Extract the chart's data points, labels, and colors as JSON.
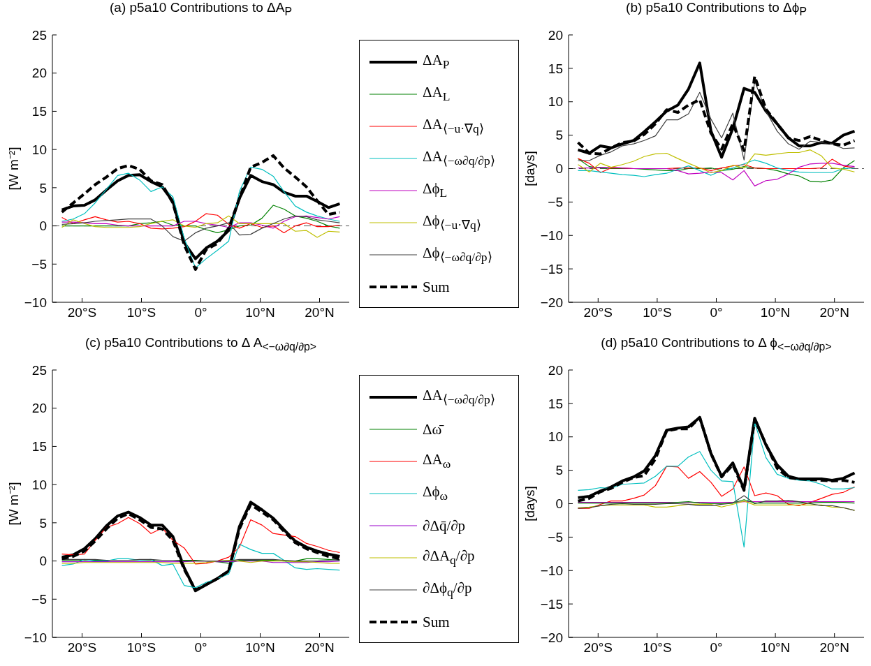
{
  "chart_data": [
    {
      "type": "line",
      "title": "(a) p5a10 Contributions to ΔA$_{P}$",
      "ylabel": "[W m⁻²]",
      "legend": "right",
      "x": [
        -23.4,
        -21.5,
        -19.6,
        -17.8,
        -15.9,
        -14.0,
        -12.2,
        -10.3,
        -8.4,
        -6.5,
        -4.7,
        -2.8,
        -0.9,
        0.9,
        2.8,
        4.7,
        6.5,
        8.4,
        10.3,
        12.2,
        14.0,
        15.9,
        17.8,
        19.6,
        21.5,
        23.4
      ],
      "xlim": [
        -25,
        25
      ],
      "xticks": [
        {
          "value": -20,
          "label": "20°S"
        },
        {
          "value": -10,
          "label": "10°S"
        },
        {
          "value": 0,
          "label": "0°"
        },
        {
          "value": 10,
          "label": "10°N"
        },
        {
          "value": 20,
          "label": "20°N"
        }
      ],
      "ylim": [
        -10,
        25
      ],
      "yticks": [
        -10,
        -5,
        0,
        5,
        10,
        15,
        20,
        25
      ],
      "ref_lines": [
        {
          "axis": "y",
          "value": 0,
          "color": "#555555",
          "line_style": "dashed"
        }
      ],
      "series": [
        {
          "name": "ΔA$_{P}$",
          "color": "#000000",
          "line_style": "solid",
          "values": [
            2.1,
            2.6,
            2.7,
            3.4,
            4.7,
            5.9,
            6.6,
            6.7,
            5.8,
            5.1,
            3.2,
            -2.2,
            -4.3,
            -2.9,
            -2.0,
            -0.6,
            3.6,
            6.6,
            5.8,
            5.4,
            4.4,
            3.9,
            3.9,
            3.2,
            2.4,
            2.9
          ]
        },
        {
          "name": "ΔA$_{L}$",
          "color": "#008000",
          "line_style": "solid",
          "values": [
            0,
            0,
            0,
            0,
            0,
            0,
            0,
            0.3,
            0.4,
            0.6,
            0.1,
            0,
            0,
            -0.5,
            -0.9,
            -0.5,
            0,
            0.1,
            1.0,
            2.7,
            2.2,
            1.3,
            1.0,
            0.6,
            0,
            -0.3
          ]
        },
        {
          "name": "ΔA$_{⟨−u·∇q⟩}$",
          "color": "#ff0000",
          "line_style": "solid",
          "values": [
            1.1,
            0.3,
            0.8,
            1.2,
            0.8,
            0.5,
            0.6,
            0.3,
            -0.3,
            -0.4,
            -0.3,
            -0.1,
            0.6,
            1.6,
            1.4,
            0.2,
            -0.3,
            0.3,
            -0.2,
            0,
            -0.9,
            0,
            0.4,
            -0.1,
            -0.1,
            0.1
          ]
        },
        {
          "name": "ΔA$_{⟨−ω∂q/∂p⟩}$",
          "color": "#00bfbf",
          "line_style": "solid",
          "values": [
            0.6,
            0.9,
            1.6,
            3.0,
            4.8,
            6.6,
            6.9,
            6.0,
            4.5,
            5.1,
            3.8,
            -1.6,
            -5.5,
            -4.3,
            -3.2,
            -2.0,
            4.5,
            7.7,
            7.4,
            6.5,
            4.5,
            2.6,
            1.8,
            1.3,
            0.9,
            0.6
          ]
        },
        {
          "name": "Δϕ$_{L}$",
          "color": "#bf00bf",
          "line_style": "solid",
          "values": [
            0.5,
            0.5,
            0.4,
            0.3,
            0.3,
            0.1,
            0,
            0,
            0,
            0,
            0,
            0.6,
            0.6,
            0.3,
            0.1,
            -0.2,
            0.4,
            0.4,
            0.1,
            -0.3,
            0.6,
            1.2,
            1.3,
            1.1,
            0.9,
            1.2
          ]
        },
        {
          "name": "Δϕ$_{⟨−u·∇q⟩}$",
          "color": "#bfbf00",
          "line_style": "solid",
          "values": [
            -0.2,
            0.8,
            0.3,
            -0.1,
            -0.2,
            -0.2,
            -0.2,
            -0.1,
            0.3,
            0.6,
            0.8,
            0,
            -0.2,
            0.3,
            0.4,
            1.3,
            0.3,
            0.3,
            0.3,
            0.3,
            0.3,
            -0.7,
            -0.6,
            -1.5,
            -0.7,
            -0.8
          ]
        },
        {
          "name": "Δϕ$_{⟨−ω∂q/∂p⟩}$",
          "color": "#404040",
          "line_style": "solid",
          "values": [
            0.2,
            0.3,
            0.4,
            0.6,
            0.7,
            0.8,
            0.9,
            0.9,
            0.9,
            0,
            -1.4,
            -2.0,
            -0.9,
            -0.3,
            0,
            0.4,
            -1.2,
            -1.1,
            -0.3,
            0.3,
            0.9,
            1.3,
            1.2,
            0.8,
            0.6,
            0.4
          ]
        },
        {
          "name": "Sum",
          "color": "#000000",
          "line_style": "dashed",
          "values": [
            1.8,
            3.0,
            4.2,
            5.4,
            6.4,
            7.5,
            7.9,
            7.4,
            5.9,
            5.4,
            3.0,
            -2.5,
            -5.7,
            -3.1,
            -2.3,
            -0.3,
            3.6,
            7.7,
            8.3,
            9.2,
            7.6,
            6.4,
            5.1,
            3.3,
            1.5,
            1.8
          ]
        }
      ]
    },
    {
      "type": "line",
      "title": "(b) p5a10 Contributions to Δϕ$_{P}$",
      "ylabel": "[days]",
      "x": [
        -23.4,
        -21.5,
        -19.6,
        -17.8,
        -15.9,
        -14.0,
        -12.2,
        -10.3,
        -8.4,
        -6.5,
        -4.7,
        -2.8,
        -0.9,
        0.9,
        2.8,
        4.7,
        6.5,
        8.4,
        10.3,
        12.2,
        14.0,
        15.9,
        17.8,
        19.6,
        21.5,
        23.4
      ],
      "xlim": [
        -25,
        25
      ],
      "xticks": [
        {
          "value": -20,
          "label": "20°S"
        },
        {
          "value": -10,
          "label": "10°S"
        },
        {
          "value": 0,
          "label": "0°"
        },
        {
          "value": 10,
          "label": "10°N"
        },
        {
          "value": 20,
          "label": "20°N"
        }
      ],
      "ylim": [
        -20,
        20
      ],
      "yticks": [
        -20,
        -15,
        -10,
        -5,
        0,
        5,
        10,
        15,
        20
      ],
      "ref_lines": [
        {
          "axis": "y",
          "value": 0,
          "color": "#555555",
          "line_style": "dashed"
        }
      ],
      "series": [
        {
          "color": "#000000",
          "line_style": "solid",
          "values": [
            2.8,
            2.3,
            3.4,
            3.1,
            3.7,
            4.2,
            5.5,
            7.0,
            8.6,
            9.5,
            11.9,
            15.8,
            5.6,
            1.7,
            6.0,
            12.0,
            11.4,
            8.6,
            6.7,
            4.6,
            3.4,
            3.4,
            3.9,
            3.8,
            5.0,
            5.6
          ]
        },
        {
          "color": "#008000",
          "line_style": "solid",
          "values": [
            1.5,
            0.3,
            0.1,
            0,
            0,
            0,
            -0.1,
            -0.2,
            -0.3,
            -0.3,
            0,
            0,
            0.1,
            -0.3,
            -0.1,
            0.3,
            0.1,
            0,
            -0.3,
            -0.8,
            -1.1,
            -1.9,
            -2.0,
            -1.7,
            0.1,
            1.2
          ]
        },
        {
          "color": "#ff0000",
          "line_style": "solid",
          "values": [
            1.5,
            0.8,
            -0.6,
            0.1,
            0.1,
            0,
            0,
            0,
            0,
            0.1,
            0.1,
            0.1,
            -0.3,
            0.1,
            0.4,
            0.6,
            0.1,
            0,
            0,
            0,
            0,
            0,
            0.1,
            1.4,
            0.4,
            0.1
          ]
        },
        {
          "color": "#00bfbf",
          "line_style": "solid",
          "values": [
            -0.3,
            -0.3,
            -0.5,
            -0.7,
            -0.9,
            -1.0,
            -1.2,
            -0.9,
            -0.7,
            -0.1,
            0.4,
            -0.3,
            -1.0,
            -0.3,
            0.1,
            0.7,
            1.3,
            0.8,
            0.1,
            -0.3,
            -0.5,
            -0.6,
            -0.6,
            -0.6,
            0,
            0.1
          ]
        },
        {
          "color": "#bf00bf",
          "line_style": "solid",
          "values": [
            0.1,
            0.1,
            0.2,
            0.2,
            0.1,
            0,
            0,
            0,
            0,
            -0.3,
            -0.8,
            -0.7,
            -0.5,
            -0.6,
            -1.7,
            -0.3,
            -2.6,
            -1.8,
            -1.6,
            -0.8,
            0.2,
            0.7,
            0.8,
            0.8,
            0.5,
            0.3
          ]
        },
        {
          "color": "#bfbf00",
          "line_style": "solid",
          "values": [
            0.6,
            -0.5,
            0.8,
            0.2,
            0.6,
            1.1,
            1.8,
            2.2,
            2.3,
            1.5,
            0.8,
            0.1,
            -0.6,
            -0.3,
            0.5,
            0.1,
            2.2,
            2.0,
            2.2,
            2.4,
            2.4,
            2.8,
            1.9,
            0.1,
            -0.1,
            -0.5
          ]
        },
        {
          "color": "#404040",
          "line_style": "solid",
          "values": [
            1.2,
            1.2,
            2.0,
            2.5,
            3.4,
            3.7,
            4.2,
            4.9,
            7.3,
            7.3,
            8.2,
            11.4,
            7.4,
            4.6,
            8.3,
            1.3,
            13.1,
            8.6,
            5.6,
            3.7,
            2.9,
            4.1,
            3.9,
            3.7,
            3.0,
            3.1
          ]
        },
        {
          "color": "#000000",
          "line_style": "dashed",
          "values": [
            3.9,
            2.3,
            2.2,
            3.1,
            3.9,
            4.1,
            5.1,
            6.7,
            8.8,
            8.4,
            9.5,
            10.3,
            5.3,
            2.9,
            6.7,
            2.7,
            13.8,
            8.9,
            6.7,
            4.6,
            4.2,
            4.8,
            4.2,
            3.7,
            3.5,
            4.2
          ]
        }
      ]
    },
    {
      "type": "line",
      "title": "(c) p5a10 Contributions to Δ A$_{<−ω∂q/∂p>}$",
      "ylabel": "[W m⁻²]",
      "legend": "right",
      "x": [
        -23.4,
        -21.5,
        -19.6,
        -17.8,
        -15.9,
        -14.0,
        -12.2,
        -10.3,
        -8.4,
        -6.5,
        -4.7,
        -2.8,
        -0.9,
        0.9,
        2.8,
        4.7,
        6.5,
        8.4,
        10.3,
        12.2,
        14.0,
        15.9,
        17.8,
        19.6,
        21.5,
        23.4
      ],
      "xlim": [
        -25,
        25
      ],
      "xticks": [
        {
          "value": -20,
          "label": "20°S"
        },
        {
          "value": -10,
          "label": "10°S"
        },
        {
          "value": 0,
          "label": "0°"
        },
        {
          "value": 10,
          "label": "10°N"
        },
        {
          "value": 20,
          "label": "20°N"
        }
      ],
      "ylim": [
        -10,
        25
      ],
      "yticks": [
        -10,
        -5,
        0,
        5,
        10,
        15,
        20,
        25
      ],
      "series": [
        {
          "name": "ΔA$_{⟨−ω∂q/∂p⟩}$",
          "color": "#000000",
          "line_style": "solid",
          "values": [
            0.5,
            0.8,
            1.6,
            2.9,
            4.6,
            5.9,
            6.4,
            5.7,
            4.7,
            4.7,
            3.2,
            -0.9,
            -3.9,
            -3.1,
            -2.3,
            -1.3,
            4.5,
            7.7,
            6.7,
            5.6,
            4.1,
            2.6,
            1.8,
            1.3,
            0.9,
            0.6
          ]
        },
        {
          "name": "Δω̄",
          "color": "#008000",
          "line_style": "solid",
          "values": [
            0.1,
            0.1,
            0.1,
            0.1,
            0.1,
            0.1,
            0.1,
            0.1,
            0.1,
            0.1,
            0.1,
            0.1,
            0.1,
            0,
            -0.1,
            -0.3,
            0.1,
            0.1,
            0.1,
            0.1,
            0,
            0,
            0.3,
            0.3,
            0.2,
            0.1
          ]
        },
        {
          "name": "ΔA$_{ω}$",
          "color": "#ff0000",
          "line_style": "solid",
          "values": [
            0.9,
            0.8,
            0.9,
            2.7,
            4.4,
            4.9,
            5.7,
            4.9,
            3.6,
            4.3,
            2.7,
            1.7,
            -0.4,
            -0.3,
            0,
            0.5,
            1.8,
            5.4,
            4.7,
            3.6,
            3.4,
            3.2,
            2.3,
            1.9,
            1.4,
            1.1
          ]
        },
        {
          "name": "Δϕ$_{ω}$",
          "color": "#00bfbf",
          "line_style": "solid",
          "values": [
            -0.6,
            -0.4,
            0.2,
            0,
            0,
            0.3,
            0.3,
            0.1,
            0.2,
            -0.6,
            -0.4,
            -3.2,
            -3.5,
            -2.8,
            -2.3,
            -1.7,
            2.2,
            1.5,
            1.0,
            1.0,
            0.1,
            -0.9,
            -1.1,
            -1.0,
            -1.1,
            -1.2
          ]
        },
        {
          "name": "∂Δq̄/∂p",
          "color": "#9900cc",
          "line_style": "solid",
          "values": [
            -0.1,
            -0.1,
            -0.1,
            -0.1,
            -0.1,
            -0.1,
            -0.1,
            -0.1,
            -0.1,
            -0.1,
            -0.1,
            -0.1,
            0,
            0,
            -0.1,
            -0.1,
            0,
            0,
            0,
            -0.2,
            -0.2,
            -0.2,
            -0.2,
            -0.1,
            -0.1,
            0
          ]
        },
        {
          "name": "∂ΔA$_{q}$/∂p",
          "color": "#bfbf00",
          "line_style": "solid",
          "values": [
            -0.3,
            -0.3,
            -0.2,
            -0.2,
            -0.2,
            -0.2,
            -0.2,
            -0.2,
            -0.2,
            -0.2,
            -0.3,
            -0.3,
            -0.3,
            -0.2,
            0,
            0.1,
            0,
            -0.2,
            0,
            0,
            0,
            -0.1,
            -0.1,
            -0.2,
            -0.3,
            -0.3
          ]
        },
        {
          "name": "∂Δϕ$_{q}$/∂p",
          "color": "#404040",
          "line_style": "solid",
          "values": [
            0.2,
            0.2,
            0.2,
            0.2,
            0.1,
            0.1,
            0.1,
            0.2,
            0.2,
            0.1,
            0.1,
            0,
            0,
            0,
            0,
            0,
            0.2,
            0.2,
            0.2,
            0.2,
            0.1,
            0,
            0,
            0,
            0.1,
            0.2
          ]
        },
        {
          "name": "Sum",
          "color": "#000000",
          "line_style": "dashed",
          "values": [
            0.3,
            0.6,
            1.3,
            2.6,
            4.2,
            5.6,
            6.2,
            5.4,
            4.4,
            4.2,
            2.7,
            -1.1,
            -3.8,
            -3.1,
            -2.3,
            -1.3,
            4.2,
            7.4,
            6.4,
            5.4,
            3.9,
            2.4,
            1.6,
            1.1,
            0.6,
            0.3
          ]
        }
      ]
    },
    {
      "type": "line",
      "title": "(d) p5a10 Contributions to Δ ϕ$_{<−ω∂q/∂p>}$",
      "ylabel": "[days]",
      "x": [
        -23.4,
        -21.5,
        -19.6,
        -17.8,
        -15.9,
        -14.0,
        -12.2,
        -10.3,
        -8.4,
        -6.5,
        -4.7,
        -2.8,
        -0.9,
        0.9,
        2.8,
        4.7,
        6.5,
        8.4,
        10.3,
        12.2,
        14.0,
        15.9,
        17.8,
        19.6,
        21.5,
        23.4
      ],
      "xlim": [
        -25,
        25
      ],
      "xticks": [
        {
          "value": -20,
          "label": "20°S"
        },
        {
          "value": -10,
          "label": "10°S"
        },
        {
          "value": 0,
          "label": "0°"
        },
        {
          "value": 10,
          "label": "10°N"
        },
        {
          "value": 20,
          "label": "20°N"
        }
      ],
      "ylim": [
        -20,
        20
      ],
      "yticks": [
        -20,
        -15,
        -10,
        -5,
        0,
        5,
        10,
        15,
        20
      ],
      "series": [
        {
          "color": "#000000",
          "line_style": "solid",
          "values": [
            0.9,
            1.1,
            1.9,
            2.5,
            3.4,
            4.0,
            4.9,
            7.2,
            11.0,
            11.3,
            11.5,
            12.9,
            7.5,
            4.1,
            6.1,
            2.2,
            12.8,
            8.8,
            5.8,
            4.1,
            3.7,
            3.7,
            3.7,
            3.5,
            3.8,
            4.6
          ]
        },
        {
          "color": "#ff0000",
          "line_style": "solid",
          "values": [
            -0.7,
            -0.7,
            -0.1,
            0.4,
            0.4,
            0.8,
            1.3,
            2.7,
            5.6,
            5.5,
            3.8,
            4.8,
            3.2,
            1.1,
            2.2,
            5.5,
            1.2,
            1.6,
            1.2,
            -0.1,
            -0.3,
            0.2,
            0.8,
            1.4,
            1.7,
            2.5
          ]
        },
        {
          "color": "#00bfbf",
          "line_style": "solid",
          "values": [
            2.0,
            2.1,
            2.4,
            2.3,
            2.9,
            3.0,
            3.1,
            4.1,
            5.6,
            5.6,
            7.0,
            7.8,
            5.0,
            3.4,
            3.3,
            -6.5,
            12.1,
            6.9,
            4.4,
            3.8,
            3.5,
            3.4,
            2.9,
            2.2,
            2.2,
            2.4
          ]
        },
        {
          "color": "#bf00bf",
          "line_style": "solid",
          "values": [
            0.2,
            0.2,
            0.2,
            0.2,
            0.2,
            0.2,
            0.2,
            0.2,
            0.2,
            0.2,
            0.2,
            0.2,
            0.2,
            0.2,
            0.2,
            0.3,
            0.3,
            0.3,
            0.3,
            0.3,
            0.3,
            0.3,
            0.3,
            0.3,
            0.3,
            0.3
          ]
        },
        {
          "color": "#bfbf00",
          "line_style": "solid",
          "values": [
            -0.6,
            -0.5,
            -0.3,
            -0.2,
            -0.2,
            -0.2,
            -0.2,
            -0.5,
            -0.5,
            -0.3,
            -0.1,
            -0.1,
            -0.1,
            -0.5,
            -0.1,
            0.4,
            -0.2,
            -0.2,
            -0.2,
            -0.2,
            -0.2,
            -0.2,
            -0.2,
            -0.5,
            -0.6,
            -1.0
          ]
        },
        {
          "color": "#404040",
          "line_style": "solid",
          "values": [
            -0.7,
            -0.6,
            -0.3,
            -0.1,
            0,
            -0.1,
            -0.1,
            -0.1,
            0,
            0,
            -0.1,
            -0.3,
            -0.3,
            -0.1,
            0.1,
            1.2,
            0,
            0.4,
            0.4,
            0.5,
            0.3,
            0,
            -0.3,
            -0.3,
            -0.6,
            -1.0
          ]
        },
        {
          "color": "#000000",
          "line_style": "dashed",
          "values": [
            0.4,
            0.8,
            1.8,
            2.3,
            3.2,
            3.9,
            4.2,
            6.7,
            10.9,
            11.2,
            11.2,
            12.9,
            7.5,
            4.0,
            5.8,
            2.0,
            12.6,
            8.9,
            5.3,
            3.9,
            3.7,
            3.6,
            3.5,
            3.4,
            3.5,
            3.2
          ]
        },
        {
          "color": "#008000",
          "line_style": "solid",
          "values": [
            0.1,
            0.1,
            0.1,
            0.1,
            0.1,
            0.1,
            0.1,
            0.1,
            0.1,
            0.2,
            0.3,
            0.1,
            0,
            0,
            0.1,
            0.6,
            0.1,
            0.1,
            0.1,
            0.1,
            0.1,
            0.1,
            0.2,
            0.2,
            0.2,
            0.1
          ]
        }
      ]
    }
  ]
}
